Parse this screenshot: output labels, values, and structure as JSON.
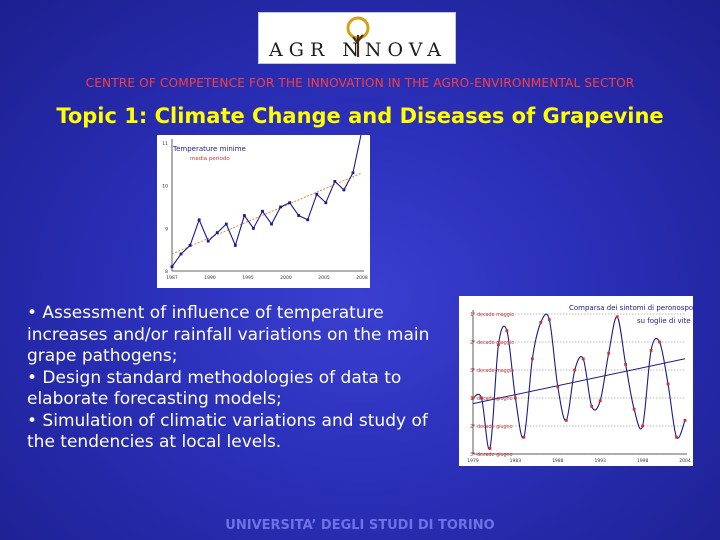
{
  "logo": {
    "text": "AGRINNOVA",
    "display": "AGR NNOVA",
    "icon": "tree-lightbulb-icon",
    "accent": "#d4a017"
  },
  "subtitle": "CENTRE OF COMPETENCE FOR THE INNOVATION IN THE AGRO-ENVIRONMENTAL SECTOR",
  "title": "Topic 1: Climate Change and Diseases of Grapevine",
  "bullets": [
    "• Assessment of influence of temperature increases and/or rainfall variations on the main grape pathogens;",
    "• Design standard methodologies of data to elaborate forecasting models;",
    "• Simulation of climatic variations and study of the tendencies at local levels."
  ],
  "footer": "UNIVERSITA’ DEGLI STUDI DI TORINO",
  "colors": {
    "background": "#2a2fb8",
    "subtitle": "#ff3c3c",
    "title": "#ffff00",
    "footer": "#6e72e6",
    "series_line": "#1a1a8c",
    "series_marker": "#cc3333",
    "trend": "#e08a2a"
  },
  "chart_data": [
    {
      "type": "line",
      "title": "Temperature minime",
      "subtitle": "media periodo",
      "ylim": [
        8,
        11
      ],
      "yticks": [
        "8",
        "9",
        "10",
        "11"
      ],
      "x": [
        1987,
        1988,
        1989,
        1990,
        1991,
        1992,
        1993,
        1994,
        1995,
        1996,
        1997,
        1998,
        1999,
        2000,
        2001,
        2002,
        2003,
        2004,
        2005,
        2006,
        2007,
        2008
      ],
      "xticks": [
        "1987",
        "1990",
        "1995",
        "2000",
        "2005",
        "2008"
      ],
      "series": [
        {
          "values": [
            8.1,
            8.4,
            8.6,
            9.2,
            8.7,
            8.9,
            9.1,
            8.6,
            9.3,
            9.0,
            9.4,
            9.1,
            9.5,
            9.6,
            9.3,
            9.2,
            9.8,
            9.6,
            10.1,
            9.9,
            10.3,
            11.3
          ]
        }
      ],
      "trend": [
        8.4,
        10.3
      ],
      "grid": false
    },
    {
      "type": "line",
      "title": "Comparsa dei sintomi di peronospora su foglie di vite",
      "yticks": [
        "1° decade maggio",
        "2° decade maggio",
        "3° decade maggio",
        "1° decade giugno",
        "2° decade giugno",
        "3° decade giugno"
      ],
      "ylim": [
        6,
        1
      ],
      "x": [
        1979,
        1980,
        1981,
        1982,
        1983,
        1984,
        1985,
        1986,
        1987,
        1988,
        1989,
        1990,
        1991,
        1992,
        1993,
        1994,
        1995,
        1996,
        1997,
        1998,
        1999,
        2000,
        2001,
        2002,
        2003,
        2004
      ],
      "xticks": [
        "1979",
        "1983",
        "1988",
        "1993",
        "1998",
        "2004"
      ],
      "series": [
        {
          "values": [
            4.0,
            4.0,
            5.8,
            2.1,
            1.6,
            4.0,
            5.4,
            2.6,
            1.3,
            1.2,
            3.6,
            4.8,
            3.0,
            2.6,
            4.3,
            4.1,
            2.4,
            1.1,
            2.8,
            4.4,
            5.0,
            2.3,
            2.0,
            3.5,
            5.4,
            4.8
          ]
        }
      ],
      "trend": [
        4.2,
        2.6
      ],
      "grid": true
    }
  ]
}
